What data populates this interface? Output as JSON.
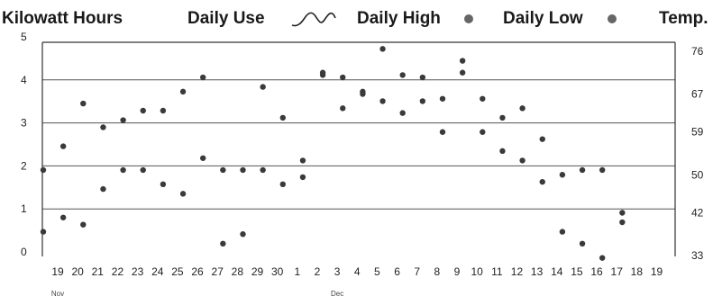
{
  "legend": {
    "kwh_label": "Kilowatt Hours",
    "use_label": "Daily Use",
    "high_label": "Daily High",
    "low_label": "Daily Low",
    "temp_label": "Temp."
  },
  "chart_data": {
    "type": "scatter",
    "title": "",
    "left_axis": {
      "label": "Kilowatt Hours",
      "ticks": [
        "0",
        "1",
        "2",
        "3",
        "4",
        "5"
      ],
      "range": [
        0,
        5
      ]
    },
    "right_axis": {
      "label": "Temp.",
      "ticks": [
        "33",
        "42",
        "50",
        "59",
        "67",
        "76"
      ],
      "range": [
        33,
        76
      ]
    },
    "x_labels": [
      "19",
      "20",
      "21",
      "22",
      "23",
      "24",
      "25",
      "26",
      "27",
      "28",
      "29",
      "30",
      "1",
      "2",
      "3",
      "4",
      "5",
      "6",
      "7",
      "8",
      "9",
      "10",
      "11",
      "12",
      "13",
      "14",
      "15",
      "16",
      "17",
      "18",
      "19"
    ],
    "month_labels": [
      {
        "text": "Nov",
        "index": 0
      },
      {
        "text": "Dec",
        "index": 14
      }
    ],
    "grid": true,
    "series": [
      {
        "name": "Daily High",
        "axis": "right",
        "points": [
          [
            0,
            51.0
          ],
          [
            1,
            56.0
          ],
          [
            2,
            65.0
          ],
          [
            3,
            60.0
          ],
          [
            4,
            61.5
          ],
          [
            5,
            63.5
          ],
          [
            6,
            63.5
          ],
          [
            7,
            67.5
          ],
          [
            8,
            70.5
          ],
          [
            9,
            51.0
          ],
          [
            10,
            51.0
          ],
          [
            11,
            68.5
          ],
          [
            12,
            62.0
          ],
          [
            13,
            53.0
          ],
          [
            14,
            71.0
          ],
          [
            15,
            70.5
          ],
          [
            16,
            67.5
          ],
          [
            17,
            65.5
          ],
          [
            18,
            71.0
          ],
          [
            19,
            70.5
          ],
          [
            20,
            66.0
          ],
          [
            21,
            71.5
          ],
          [
            22,
            66.0
          ],
          [
            23,
            62.0
          ],
          [
            24,
            64.0
          ],
          [
            25,
            57.5
          ],
          [
            26,
            50.0
          ],
          [
            27,
            51.0
          ],
          [
            28,
            51.0
          ],
          [
            29,
            42.0
          ]
        ]
      },
      {
        "name": "Daily Low",
        "axis": "right",
        "points": [
          [
            0,
            38.0
          ],
          [
            1,
            41.0
          ],
          [
            2,
            39.5
          ],
          [
            3,
            47.0
          ],
          [
            4,
            51.0
          ],
          [
            5,
            51.0
          ],
          [
            6,
            48.0
          ],
          [
            7,
            46.0
          ],
          [
            8,
            53.5
          ],
          [
            9,
            35.5
          ],
          [
            10,
            37.5
          ],
          [
            11,
            51.0
          ],
          [
            12,
            48.0
          ],
          [
            13,
            49.5
          ],
          [
            14,
            71.5
          ],
          [
            15,
            64.0
          ],
          [
            16,
            67.0
          ],
          [
            17,
            76.5
          ],
          [
            18,
            63.0
          ],
          [
            19,
            65.5
          ],
          [
            20,
            59.0
          ],
          [
            21,
            74.0
          ],
          [
            22,
            59.0
          ],
          [
            23,
            55.0
          ],
          [
            24,
            53.0
          ],
          [
            25,
            48.5
          ],
          [
            26,
            38.0
          ],
          [
            27,
            35.5
          ],
          [
            28,
            32.5
          ],
          [
            29,
            40.0
          ]
        ]
      }
    ]
  }
}
